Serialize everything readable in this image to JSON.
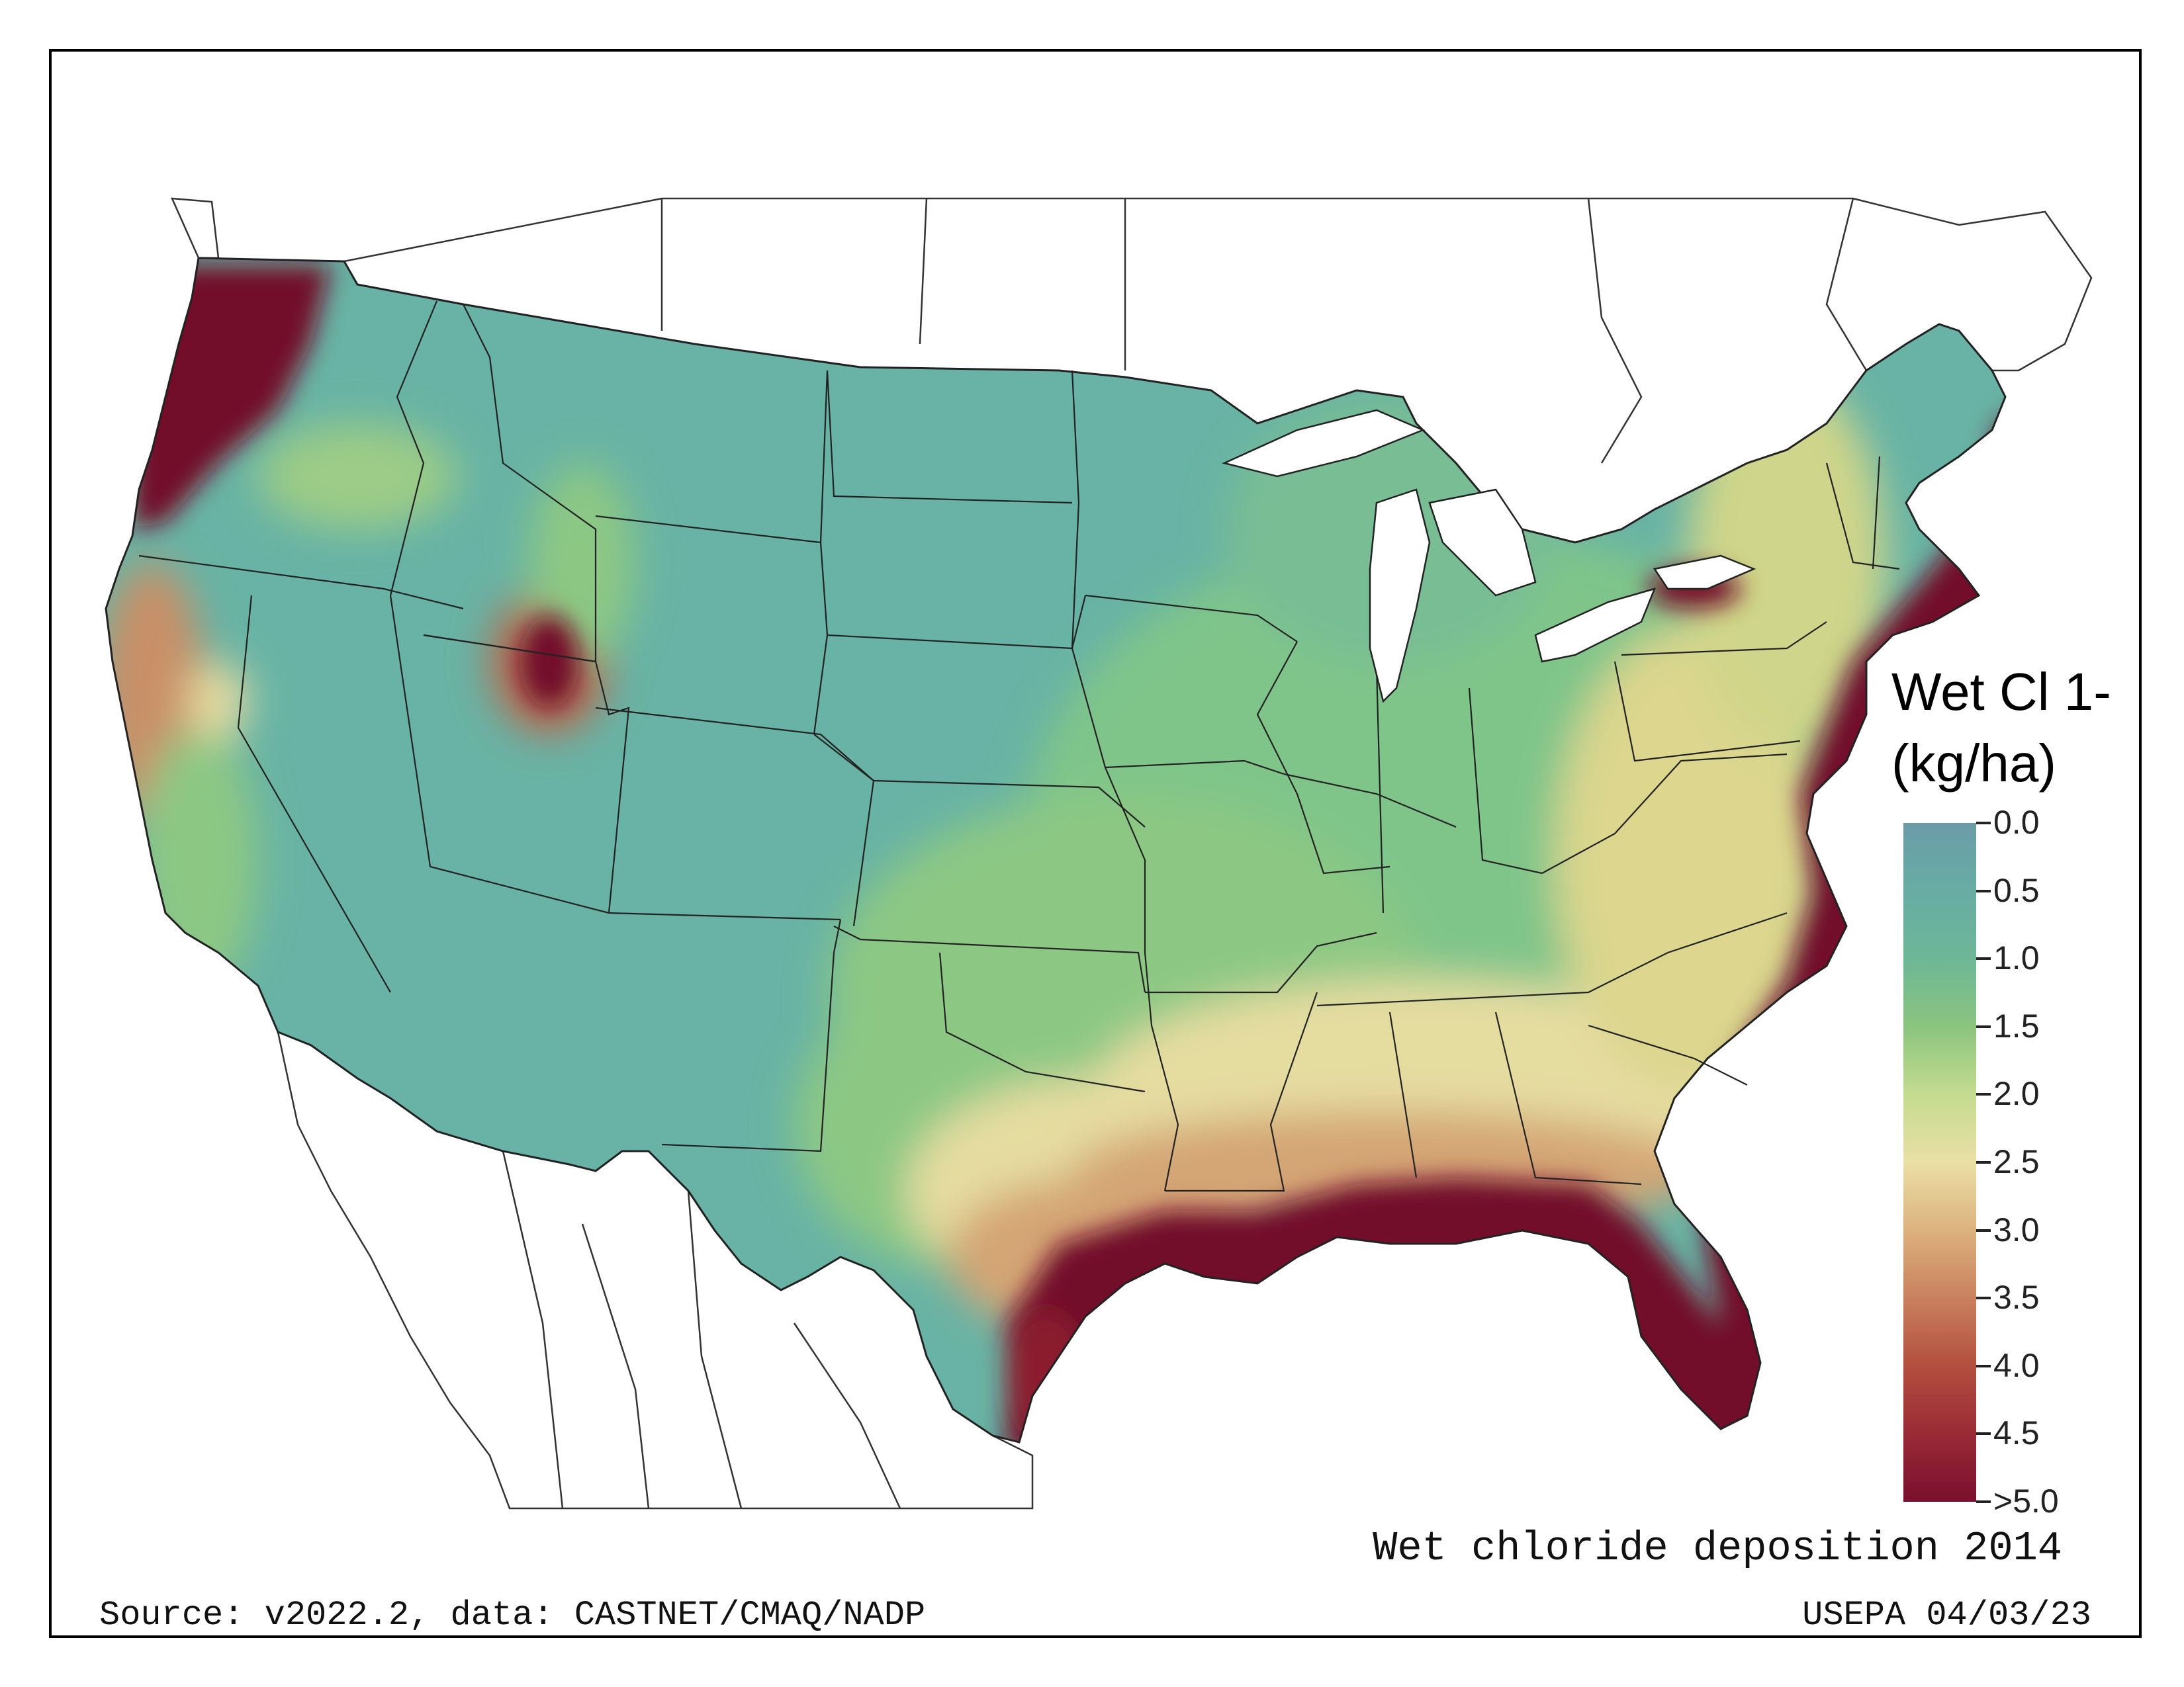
{
  "map": {
    "title": "Wet chloride deposition 2014",
    "source": "Source: v2022.2, data: CASTNET/CMAQ/NADP",
    "credit": "USEPA 04/03/23",
    "region": "contiguous United States",
    "legend": {
      "title_line1": "Wet Cl 1-",
      "title_line2": "(kg/ha)",
      "ticks": [
        "0.0",
        "0.5",
        "1.0",
        "1.5",
        "2.0",
        "2.5",
        "3.0",
        "3.5",
        "4.0",
        "4.5",
        ">5.0"
      ],
      "colors": [
        "#6b9ca8",
        "#68aca4",
        "#6db797",
        "#8bc47f",
        "#c4dc8f",
        "#eadfa6",
        "#dcb27e",
        "#c9805e",
        "#b34f3e",
        "#9a2a36",
        "#7a0f2e"
      ]
    },
    "colors": {
      "low": "#68b3a5",
      "mid_green": "#7fc58a",
      "yellow": "#e5dca0",
      "tan": "#d4a574",
      "high": "#72082a",
      "border": "#222222"
    }
  }
}
